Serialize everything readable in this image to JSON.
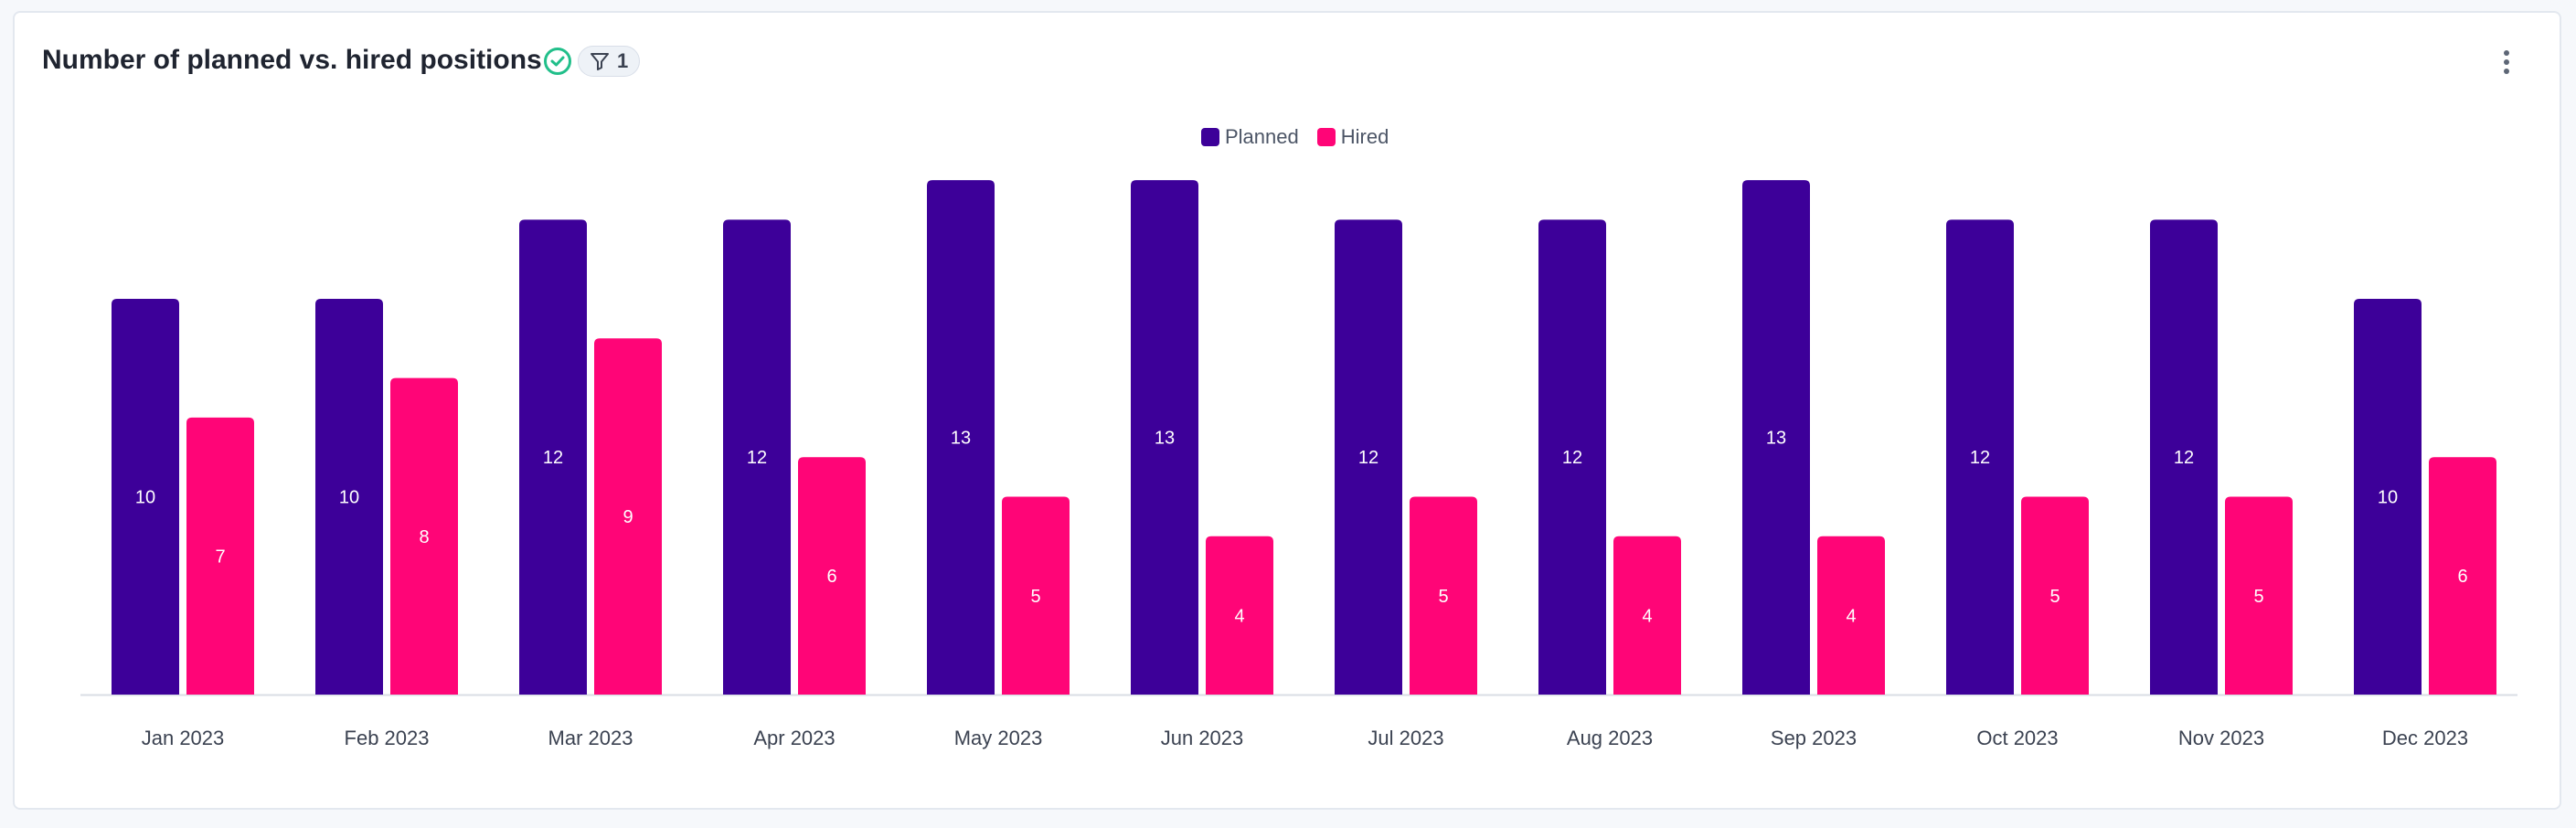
{
  "card": {
    "title": "Number of planned vs. hired positions",
    "filter_count": "1",
    "icons": {
      "verified": "check-circle-icon",
      "filter": "funnel-icon",
      "menu": "kebab-menu-icon"
    }
  },
  "colors": {
    "planned": "#3d0099",
    "hired": "#ff0577",
    "axis": "#d9dde4"
  },
  "chart_data": {
    "type": "bar",
    "title": "Number of planned vs. hired positions",
    "xlabel": "",
    "ylabel": "",
    "ylim": [
      0,
      14
    ],
    "legend_position": "top-center",
    "categories": [
      "Jan 2023",
      "Feb 2023",
      "Mar 2023",
      "Apr 2023",
      "May 2023",
      "Jun 2023",
      "Jul 2023",
      "Aug 2023",
      "Sep 2023",
      "Oct 2023",
      "Nov 2023",
      "Dec 2023"
    ],
    "series": [
      {
        "name": "Planned",
        "values": [
          10,
          10,
          12,
          12,
          13,
          13,
          12,
          12,
          13,
          12,
          12,
          10
        ]
      },
      {
        "name": "Hired",
        "values": [
          7,
          8,
          9,
          6,
          5,
          4,
          5,
          4,
          4,
          5,
          5,
          6
        ]
      }
    ]
  }
}
